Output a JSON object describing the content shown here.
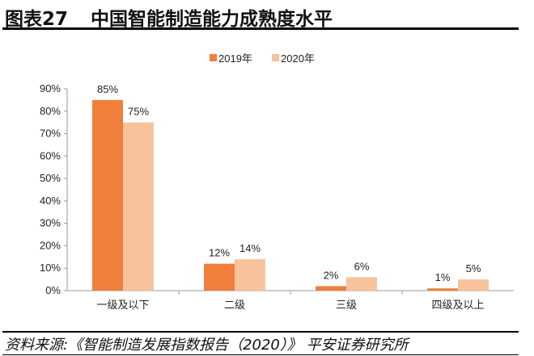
{
  "header": {
    "label": "图表27",
    "title": "中国智能制造能力成熟度水平"
  },
  "source": "资料来源:《智能制造发展指数报告（2020）》 平安证券研究所",
  "chart_data": {
    "type": "bar",
    "title": "中国智能制造能力成熟度水平",
    "categories": [
      "一级及以下",
      "二级",
      "三级",
      "四级及以上"
    ],
    "series": [
      {
        "name": "2019年",
        "values": [
          85,
          12,
          2,
          1
        ],
        "color": "#F07F3C"
      },
      {
        "name": "2020年",
        "values": [
          75,
          14,
          6,
          5
        ],
        "color": "#F8C39C"
      }
    ],
    "ylim": [
      0,
      90
    ],
    "yticks": [
      "0%",
      "10%",
      "20%",
      "30%",
      "40%",
      "50%",
      "60%",
      "70%",
      "80%",
      "90%"
    ],
    "value_suffix": "%",
    "legend": "top-center",
    "grid": false
  }
}
